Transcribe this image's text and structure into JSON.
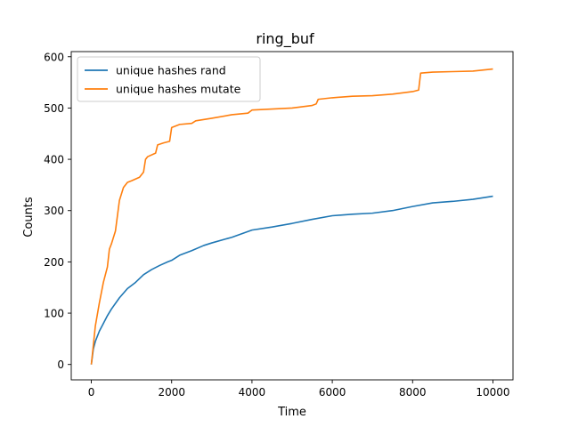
{
  "chart_data": {
    "type": "line",
    "title": "ring_buf",
    "xlabel": "Time",
    "ylabel": "Counts",
    "xlim": [
      -500,
      10500
    ],
    "ylim": [
      -30,
      610
    ],
    "xticks": [
      0,
      2000,
      4000,
      6000,
      8000,
      10000
    ],
    "yticks": [
      0,
      100,
      200,
      300,
      400,
      500,
      600
    ],
    "grid": false,
    "legend_position": "top-left",
    "series": [
      {
        "name": "unique hashes rand",
        "color": "#1f77b4",
        "points": [
          [
            0,
            0
          ],
          [
            50,
            30
          ],
          [
            100,
            45
          ],
          [
            200,
            65
          ],
          [
            300,
            80
          ],
          [
            400,
            95
          ],
          [
            500,
            108
          ],
          [
            700,
            130
          ],
          [
            900,
            148
          ],
          [
            1100,
            160
          ],
          [
            1300,
            175
          ],
          [
            1500,
            185
          ],
          [
            1700,
            193
          ],
          [
            1900,
            200
          ],
          [
            2000,
            203
          ],
          [
            2200,
            213
          ],
          [
            2500,
            222
          ],
          [
            2800,
            232
          ],
          [
            3000,
            237
          ],
          [
            3500,
            248
          ],
          [
            4000,
            262
          ],
          [
            4500,
            268
          ],
          [
            5000,
            275
          ],
          [
            5500,
            283
          ],
          [
            6000,
            290
          ],
          [
            6500,
            293
          ],
          [
            7000,
            295
          ],
          [
            7500,
            300
          ],
          [
            8000,
            308
          ],
          [
            8500,
            315
          ],
          [
            9000,
            318
          ],
          [
            9500,
            322
          ],
          [
            10000,
            328
          ]
        ]
      },
      {
        "name": "unique hashes mutate",
        "color": "#ff7f0e",
        "points": [
          [
            0,
            0
          ],
          [
            100,
            75
          ],
          [
            200,
            120
          ],
          [
            300,
            160
          ],
          [
            400,
            190
          ],
          [
            450,
            225
          ],
          [
            500,
            235
          ],
          [
            600,
            260
          ],
          [
            700,
            320
          ],
          [
            800,
            345
          ],
          [
            900,
            355
          ],
          [
            1000,
            358
          ],
          [
            1200,
            365
          ],
          [
            1300,
            375
          ],
          [
            1350,
            400
          ],
          [
            1400,
            405
          ],
          [
            1600,
            412
          ],
          [
            1650,
            428
          ],
          [
            1800,
            432
          ],
          [
            1950,
            435
          ],
          [
            2000,
            462
          ],
          [
            2200,
            468
          ],
          [
            2500,
            470
          ],
          [
            2600,
            475
          ],
          [
            3000,
            480
          ],
          [
            3500,
            487
          ],
          [
            3900,
            490
          ],
          [
            4000,
            496
          ],
          [
            4500,
            498
          ],
          [
            5000,
            500
          ],
          [
            5500,
            505
          ],
          [
            5600,
            508
          ],
          [
            5650,
            517
          ],
          [
            6000,
            520
          ],
          [
            6500,
            523
          ],
          [
            7000,
            524
          ],
          [
            7500,
            527
          ],
          [
            8000,
            532
          ],
          [
            8150,
            535
          ],
          [
            8200,
            568
          ],
          [
            8500,
            570
          ],
          [
            9000,
            571
          ],
          [
            9500,
            572
          ],
          [
            10000,
            576
          ]
        ]
      }
    ]
  }
}
